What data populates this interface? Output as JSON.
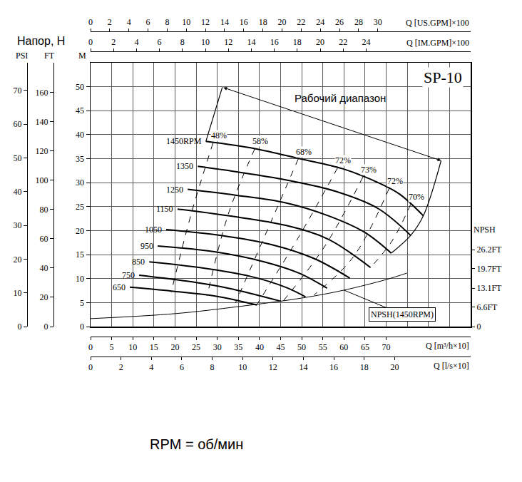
{
  "chart_data": {
    "type": "line",
    "title": "SP-10",
    "y_title": "Напор, H",
    "footnote": "RPM = об/мин",
    "grid": true,
    "x_label": "Q [m³/h×10]",
    "xlim": [
      0,
      90
    ],
    "xticks": [
      0,
      5,
      10,
      15,
      20,
      25,
      30,
      35,
      40,
      45,
      50,
      55,
      60,
      65,
      70
    ],
    "x2_label": "Q [US.GPM]×100",
    "x2lim": [
      0,
      39.7
    ],
    "x2ticks": [
      0,
      2,
      4,
      6,
      8,
      10,
      12,
      14,
      16,
      18,
      20,
      22,
      24,
      26,
      28,
      30
    ],
    "x3_label": "Q [IM.GPM]×100",
    "x3lim": [
      0,
      33.1
    ],
    "x3ticks": [
      0,
      2,
      4,
      6,
      8,
      10,
      12,
      14,
      16,
      18,
      20,
      22,
      24
    ],
    "x4_label": "Q [l/s×10]",
    "x4lim": [
      0,
      25
    ],
    "x4ticks": [
      0,
      2,
      4,
      6,
      8,
      10,
      12,
      14,
      16,
      18,
      20
    ],
    "y_label": "M",
    "ylim": [
      0,
      55
    ],
    "yticks": [
      0,
      5,
      10,
      15,
      20,
      25,
      30,
      35,
      40,
      45,
      50
    ],
    "y2_label": "NPSH",
    "y2lim": [
      0,
      89.8
    ],
    "y2ticks": [
      0,
      {
        "value": 6.6,
        "label": "6.6FT"
      },
      {
        "value": 13.1,
        "label": "13.1FT"
      },
      {
        "value": 19.7,
        "label": "19.7FT"
      },
      {
        "value": 26.2,
        "label": "26.2FT"
      }
    ],
    "y3_label": "FT",
    "y3lim": [
      0,
      180.4
    ],
    "y3ticks": [
      0,
      20,
      40,
      60,
      80,
      100,
      120,
      140,
      160
    ],
    "y4_label": "PSI",
    "y4lim": [
      0,
      78.2
    ],
    "y4ticks": [
      0,
      10,
      20,
      30,
      40,
      50,
      60,
      70
    ],
    "series": [
      {
        "name": "1450RPM",
        "color": "#000000",
        "line_style": "solid",
        "x": [
          27.3,
          38.9,
          49.5,
          59.7,
          68.1,
          73.2,
          78.8
        ],
        "y": [
          38.6,
          37.1,
          35.0,
          32.9,
          30.0,
          27.6,
          23.1
        ]
      },
      {
        "name": "1350",
        "color": "#000000",
        "line_style": "solid",
        "x": [
          25.4,
          34.3,
          46.2,
          58.0,
          68.1,
          75.8
        ],
        "y": [
          33.4,
          32.3,
          30.6,
          28.2,
          24.6,
          19.0
        ]
      },
      {
        "name": "1250",
        "color": "#000000",
        "line_style": "solid",
        "x": [
          23.0,
          34.3,
          46.2,
          56.3,
          64.8,
          71.2
        ],
        "y": [
          28.6,
          27.4,
          25.8,
          23.1,
          19.7,
          15.3
        ]
      },
      {
        "name": "1150",
        "color": "#000000",
        "line_style": "solid",
        "x": [
          20.6,
          32.6,
          46.2,
          56.3,
          66.3
        ],
        "y": [
          24.5,
          23.1,
          21.1,
          18.2,
          12.3
        ]
      },
      {
        "name": "1050",
        "color": "#000000",
        "line_style": "solid",
        "x": [
          17.9,
          30.9,
          42.8,
          52.9,
          61.4
        ],
        "y": [
          20.2,
          19.0,
          17.1,
          14.2,
          10.1
        ]
      },
      {
        "name": "950",
        "color": "#000000",
        "line_style": "solid",
        "x": [
          15.9,
          29.3,
          41.1,
          49.5,
          56.0
        ],
        "y": [
          16.8,
          15.6,
          13.5,
          11.1,
          8.0
        ]
      },
      {
        "name": "850",
        "color": "#000000",
        "line_style": "solid",
        "x": [
          13.9,
          25.9,
          37.7,
          46.2,
          50.9
        ],
        "y": [
          13.5,
          12.3,
          10.5,
          8.2,
          6.2
        ]
      },
      {
        "name": "750",
        "color": "#000000",
        "line_style": "solid",
        "x": [
          11.5,
          22.5,
          32.6,
          45.0
        ],
        "y": [
          10.7,
          9.5,
          8.0,
          5.3
        ]
      },
      {
        "name": "650",
        "color": "#000000",
        "line_style": "solid",
        "x": [
          9.3,
          19.1,
          29.3,
          39.4
        ],
        "y": [
          8.2,
          7.4,
          6.4,
          4.5
        ]
      }
    ],
    "efficiency_lines": [
      {
        "value": 48,
        "label": "48%",
        "color": "#000000",
        "line_style": "dashed",
        "x": [
          29.0,
          23.8,
          19.1
        ],
        "y": [
          38.3,
          23.4,
          7.2
        ]
      },
      {
        "value": 58,
        "label": "58%",
        "color": "#000000",
        "line_style": "dashed",
        "x": [
          38.9,
          32.6,
          27.6
        ],
        "y": [
          37.1,
          23.4,
          6.4
        ]
      },
      {
        "value": 68,
        "label": "68%",
        "color": "#000000",
        "line_style": "dashed",
        "x": [
          49.2,
          42.8,
          34.3
        ],
        "y": [
          35.0,
          22.0,
          4.9
        ]
      },
      {
        "value": 72,
        "label": "72%",
        "color": "#000000",
        "line_style": "dashed",
        "x": [
          58.5,
          49.5,
          39.4
        ],
        "y": [
          33.1,
          19.0,
          4.6
        ]
      },
      {
        "value": 73,
        "label": "73%",
        "color": "#000000",
        "line_style": "dashed",
        "x": [
          64.5,
          55.5,
          45.3
        ],
        "y": [
          31.2,
          16.8,
          5.0
        ]
      },
      {
        "value": 72,
        "label": "72%",
        "color": "#000000",
        "line_style": "dashed",
        "x": [
          70.7,
          62.2,
          52.9
        ],
        "y": [
          28.8,
          14.5,
          6.6
        ]
      },
      {
        "value": 70,
        "label": "70%",
        "color": "#000000",
        "line_style": "dashed",
        "x": [
          75.8,
          71.5,
          66.3
        ],
        "y": [
          25.5,
          18.0,
          12.3
        ]
      }
    ],
    "working_range": {
      "label": "Рабочий диапазон",
      "color": "#000000",
      "left": {
        "x": [
          31.2,
          27.3
        ],
        "y": [
          49.9,
          38.6
        ]
      },
      "right": {
        "x": [
          83.0,
          78.8,
          75.8,
          71.2
        ],
        "y": [
          34.6,
          23.1,
          19.0,
          15.3
        ]
      }
    },
    "npsh": {
      "name": "NPSH(1450RPM)",
      "axis": "y2",
      "color": "#000000",
      "line_style": "solid",
      "x": [
        0,
        20,
        35,
        50,
        60,
        70,
        74.9
      ],
      "y": [
        2.7,
        4.4,
        6.8,
        9.7,
        12.4,
        16.0,
        18.2
      ]
    }
  }
}
